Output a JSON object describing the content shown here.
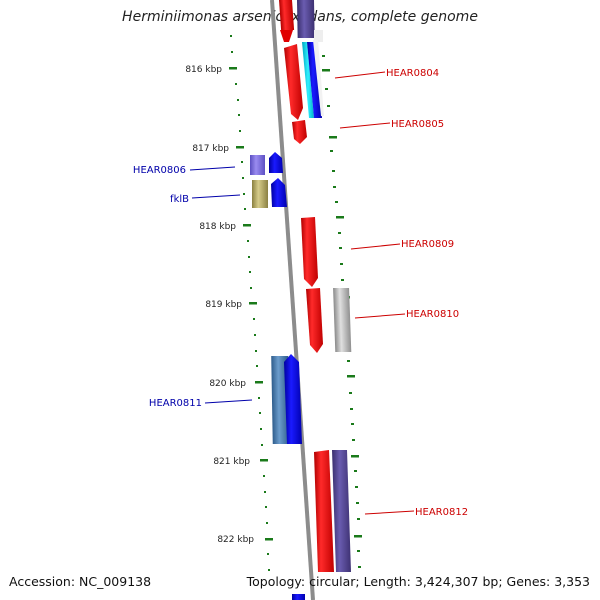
{
  "title": "Herminiimonas arsenicoxydans, complete genome",
  "footer": {
    "accession": "Accession: NC_009138",
    "topology": "Topology: circular; Length: 3,424,307 bp; Genes: 3,353"
  },
  "kbp_labels": [
    "816 kbp",
    "817 kbp",
    "818 kbp",
    "819 kbp",
    "820 kbp",
    "821 kbp",
    "822 kbp"
  ],
  "gene_labels": [
    "HEAR0804",
    "HEAR0805",
    "HEAR0806",
    "fklB",
    "HEAR0809",
    "HEAR0810",
    "HEAR0811",
    "HEAR0812"
  ],
  "colors": {
    "red_label": "#cc0000",
    "blue_label": "#0000aa",
    "tick_green": "#1a7a1a",
    "backbone": "#8c8c8c"
  }
}
